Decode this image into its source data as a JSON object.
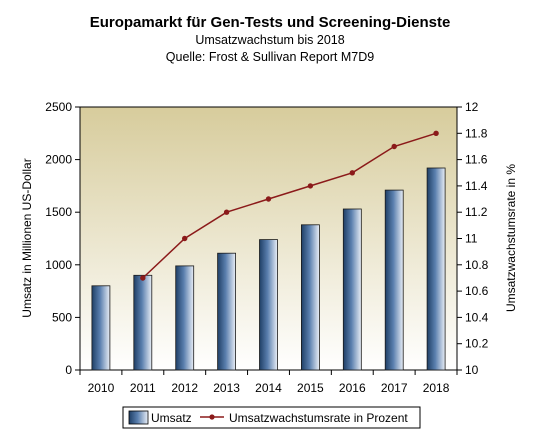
{
  "chart_data": {
    "type": "bar+line",
    "title": "Europamarkt für Gen-Tests und Screening-Dienste",
    "subtitle": "Umsatzwachstum bis 2018",
    "source": "Quelle: Frost & Sullivan Report M7D9",
    "categories": [
      "2010",
      "2011",
      "2012",
      "2013",
      "2014",
      "2015",
      "2016",
      "2017",
      "2018"
    ],
    "series": [
      {
        "name": "Umsatz",
        "type": "bar",
        "axis": "left",
        "values": [
          800,
          900,
          990,
          1110,
          1240,
          1380,
          1530,
          1710,
          1920
        ]
      },
      {
        "name": "Umsatzwachstumsrate in Prozent",
        "type": "line",
        "axis": "right",
        "x": [
          "2011",
          "2012",
          "2013",
          "2014",
          "2015",
          "2016",
          "2017",
          "2018"
        ],
        "values": [
          10.7,
          11.0,
          11.2,
          11.3,
          11.4,
          11.5,
          11.7,
          11.8
        ]
      }
    ],
    "ylabel": "Umsatz in Millionen US-Dollar",
    "ylim": [
      0,
      2500
    ],
    "yticks": [
      "0",
      "500",
      "1000",
      "1500",
      "2000",
      "2500"
    ],
    "y2label": "Umsatzwachstumsrate in %",
    "y2lim": [
      10,
      12
    ],
    "y2ticks": [
      "10",
      "10.2",
      "10.4",
      "10.6",
      "10.8",
      "11",
      "11.2",
      "11.4",
      "11.6",
      "11.8",
      "12"
    ],
    "legend_position": "bottom",
    "grid": false,
    "colors": {
      "bar_dark": "#1f3f66",
      "bar_mid": "#5a7fae",
      "bar_light": "#e9eef6",
      "line": "#8b1a1a",
      "plot_top": "#d7cc9c",
      "plot_bottom": "#ffffff"
    }
  }
}
